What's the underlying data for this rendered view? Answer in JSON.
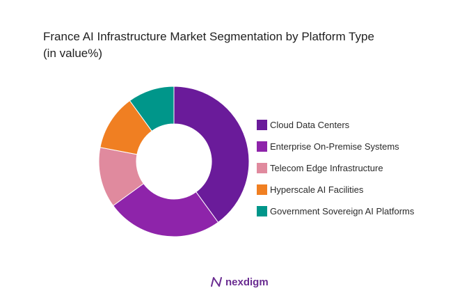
{
  "title_line1": "France AI Infrastructure Market Segmentation by Platform Type",
  "title_line2": "(in value%)",
  "brand": {
    "name": "nexdigm",
    "icon": "nexdigm-logo-icon",
    "color": "#6a2c91"
  },
  "chart_data": {
    "type": "pie",
    "donut": true,
    "title": "France AI Infrastructure Market Segmentation by Platform Type (in value%)",
    "unit": "%",
    "categories": [
      "Cloud Data Centers",
      "Enterprise On-Premise Systems",
      "Telecom Edge Infrastructure",
      "Hyperscale AI Facilities",
      "Government Sovereign AI Platforms"
    ],
    "values": [
      40,
      25,
      13,
      12,
      10
    ],
    "colors": [
      "#6a1b9a",
      "#8e24aa",
      "#e08a9e",
      "#f07f22",
      "#00968a"
    ],
    "legend_position": "right"
  }
}
